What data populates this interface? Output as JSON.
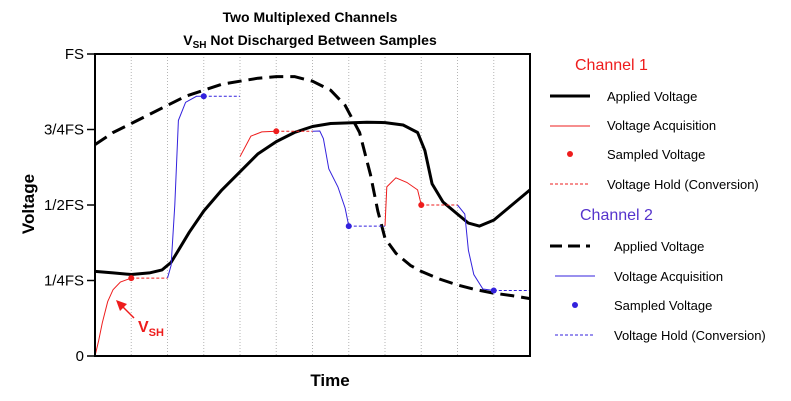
{
  "chart_data": {
    "type": "line",
    "title": "Two Multiplexed Channels",
    "subtitle_main": "V",
    "subtitle_sub": "SH",
    "subtitle_rest": " Not Discharged Between Samples",
    "xlabel": "Time",
    "ylabel": "Voltage",
    "ylim": [
      0,
      1
    ],
    "xlim": [
      0,
      12
    ],
    "y_ticks": [
      {
        "value": 0,
        "label": "0"
      },
      {
        "value": 0.25,
        "label": "1/4FS"
      },
      {
        "value": 0.5,
        "label": "1/2FS"
      },
      {
        "value": 0.75,
        "label": "3/4FS"
      },
      {
        "value": 1,
        "label": "FS"
      }
    ],
    "grid": "vertical dotted",
    "annotation": {
      "text_main": "V",
      "text_sub": "SH",
      "points_to": [
        0.7,
        0.16
      ]
    },
    "channels": [
      {
        "name": "Channel 1",
        "color": "#ee1c1c",
        "legend": {
          "applied": "Applied Voltage",
          "acquisition": "Voltage Acquisition",
          "sampled": "Sampled Voltage",
          "hold": "Voltage Hold (Conversion)"
        },
        "applied": [
          [
            0,
            0.28
          ],
          [
            0.5,
            0.275
          ],
          [
            1,
            0.27
          ],
          [
            1.5,
            0.275
          ],
          [
            1.85,
            0.285
          ],
          [
            2.1,
            0.31
          ],
          [
            2.3,
            0.35
          ],
          [
            2.6,
            0.41
          ],
          [
            3,
            0.48
          ],
          [
            3.5,
            0.55
          ],
          [
            4,
            0.61
          ],
          [
            4.5,
            0.67
          ],
          [
            5,
            0.71
          ],
          [
            5.5,
            0.74
          ],
          [
            6,
            0.76
          ],
          [
            6.5,
            0.77
          ],
          [
            7,
            0.772
          ],
          [
            7.5,
            0.774
          ],
          [
            8,
            0.773
          ],
          [
            8.5,
            0.765
          ],
          [
            8.9,
            0.74
          ],
          [
            9.1,
            0.68
          ],
          [
            9.3,
            0.57
          ],
          [
            9.6,
            0.51
          ],
          [
            10,
            0.47
          ],
          [
            10.3,
            0.44
          ],
          [
            10.6,
            0.43
          ],
          [
            11,
            0.45
          ],
          [
            11.5,
            0.5
          ],
          [
            12,
            0.55
          ]
        ],
        "acquisition": [
          [
            [
              0,
              0
            ],
            [
              0.1,
              0.05
            ],
            [
              0.2,
              0.11
            ],
            [
              0.35,
              0.18
            ],
            [
              0.5,
              0.22
            ],
            [
              0.7,
              0.245
            ],
            [
              1,
              0.258
            ]
          ],
          [
            [
              4,
              0.66
            ],
            [
              4.3,
              0.728
            ],
            [
              4.6,
              0.742
            ],
            [
              5,
              0.744
            ]
          ],
          [
            [
              8,
              0.43
            ],
            [
              8.05,
              0.56
            ],
            [
              8.3,
              0.59
            ],
            [
              8.6,
              0.575
            ],
            [
              8.9,
              0.55
            ],
            [
              9,
              0.5
            ]
          ]
        ],
        "sampled": [
          {
            "x": 1,
            "y": 0.258
          },
          {
            "x": 5,
            "y": 0.744
          },
          {
            "x": 9,
            "y": 0.5
          }
        ],
        "hold": [
          [
            [
              1,
              0.258
            ],
            [
              2,
              0.258
            ]
          ],
          [
            [
              5,
              0.744
            ],
            [
              6,
              0.744
            ]
          ],
          [
            [
              9,
              0.5
            ],
            [
              10,
              0.5
            ]
          ]
        ]
      },
      {
        "name": "Channel 2",
        "color": "#3322dd",
        "legend": {
          "applied": "Applied Voltage",
          "acquisition": "Voltage Acquisition",
          "sampled": "Sampled Voltage",
          "hold": "Voltage Hold (Conversion)"
        },
        "applied": [
          [
            0,
            0.7
          ],
          [
            0.5,
            0.74
          ],
          [
            1,
            0.77
          ],
          [
            1.5,
            0.8
          ],
          [
            2,
            0.83
          ],
          [
            2.5,
            0.86
          ],
          [
            3,
            0.88
          ],
          [
            3.5,
            0.9
          ],
          [
            4,
            0.91
          ],
          [
            4.5,
            0.92
          ],
          [
            5,
            0.925
          ],
          [
            5.5,
            0.925
          ],
          [
            6,
            0.91
          ],
          [
            6.5,
            0.88
          ],
          [
            6.9,
            0.83
          ],
          [
            7.3,
            0.74
          ],
          [
            7.6,
            0.6
          ],
          [
            7.8,
            0.48
          ],
          [
            8,
            0.39
          ],
          [
            8.3,
            0.34
          ],
          [
            8.7,
            0.3
          ],
          [
            9,
            0.28
          ],
          [
            9.5,
            0.255
          ],
          [
            10,
            0.235
          ],
          [
            10.5,
            0.22
          ],
          [
            11,
            0.208
          ],
          [
            11.5,
            0.2
          ],
          [
            12,
            0.19
          ]
        ],
        "acquisition": [
          [
            [
              2,
              0.258
            ],
            [
              2.1,
              0.3
            ],
            [
              2.2,
              0.5
            ],
            [
              2.3,
              0.78
            ],
            [
              2.5,
              0.84
            ],
            [
              2.8,
              0.86
            ],
            [
              3,
              0.86
            ]
          ],
          [
            [
              6,
              0.744
            ],
            [
              6.2,
              0.745
            ],
            [
              6.3,
              0.72
            ],
            [
              6.45,
              0.62
            ],
            [
              6.7,
              0.56
            ],
            [
              6.9,
              0.49
            ],
            [
              7,
              0.43
            ]
          ],
          [
            [
              10,
              0.5
            ],
            [
              10.2,
              0.47
            ],
            [
              10.3,
              0.35
            ],
            [
              10.45,
              0.27
            ],
            [
              10.7,
              0.222
            ],
            [
              11,
              0.217
            ]
          ]
        ],
        "sampled": [
          {
            "x": 3,
            "y": 0.86
          },
          {
            "x": 7,
            "y": 0.43
          },
          {
            "x": 11,
            "y": 0.217
          }
        ],
        "hold": [
          [
            [
              3,
              0.86
            ],
            [
              4,
              0.86
            ]
          ],
          [
            [
              7,
              0.43
            ],
            [
              8,
              0.43
            ]
          ],
          [
            [
              11,
              0.217
            ],
            [
              12,
              0.217
            ]
          ]
        ]
      }
    ]
  }
}
